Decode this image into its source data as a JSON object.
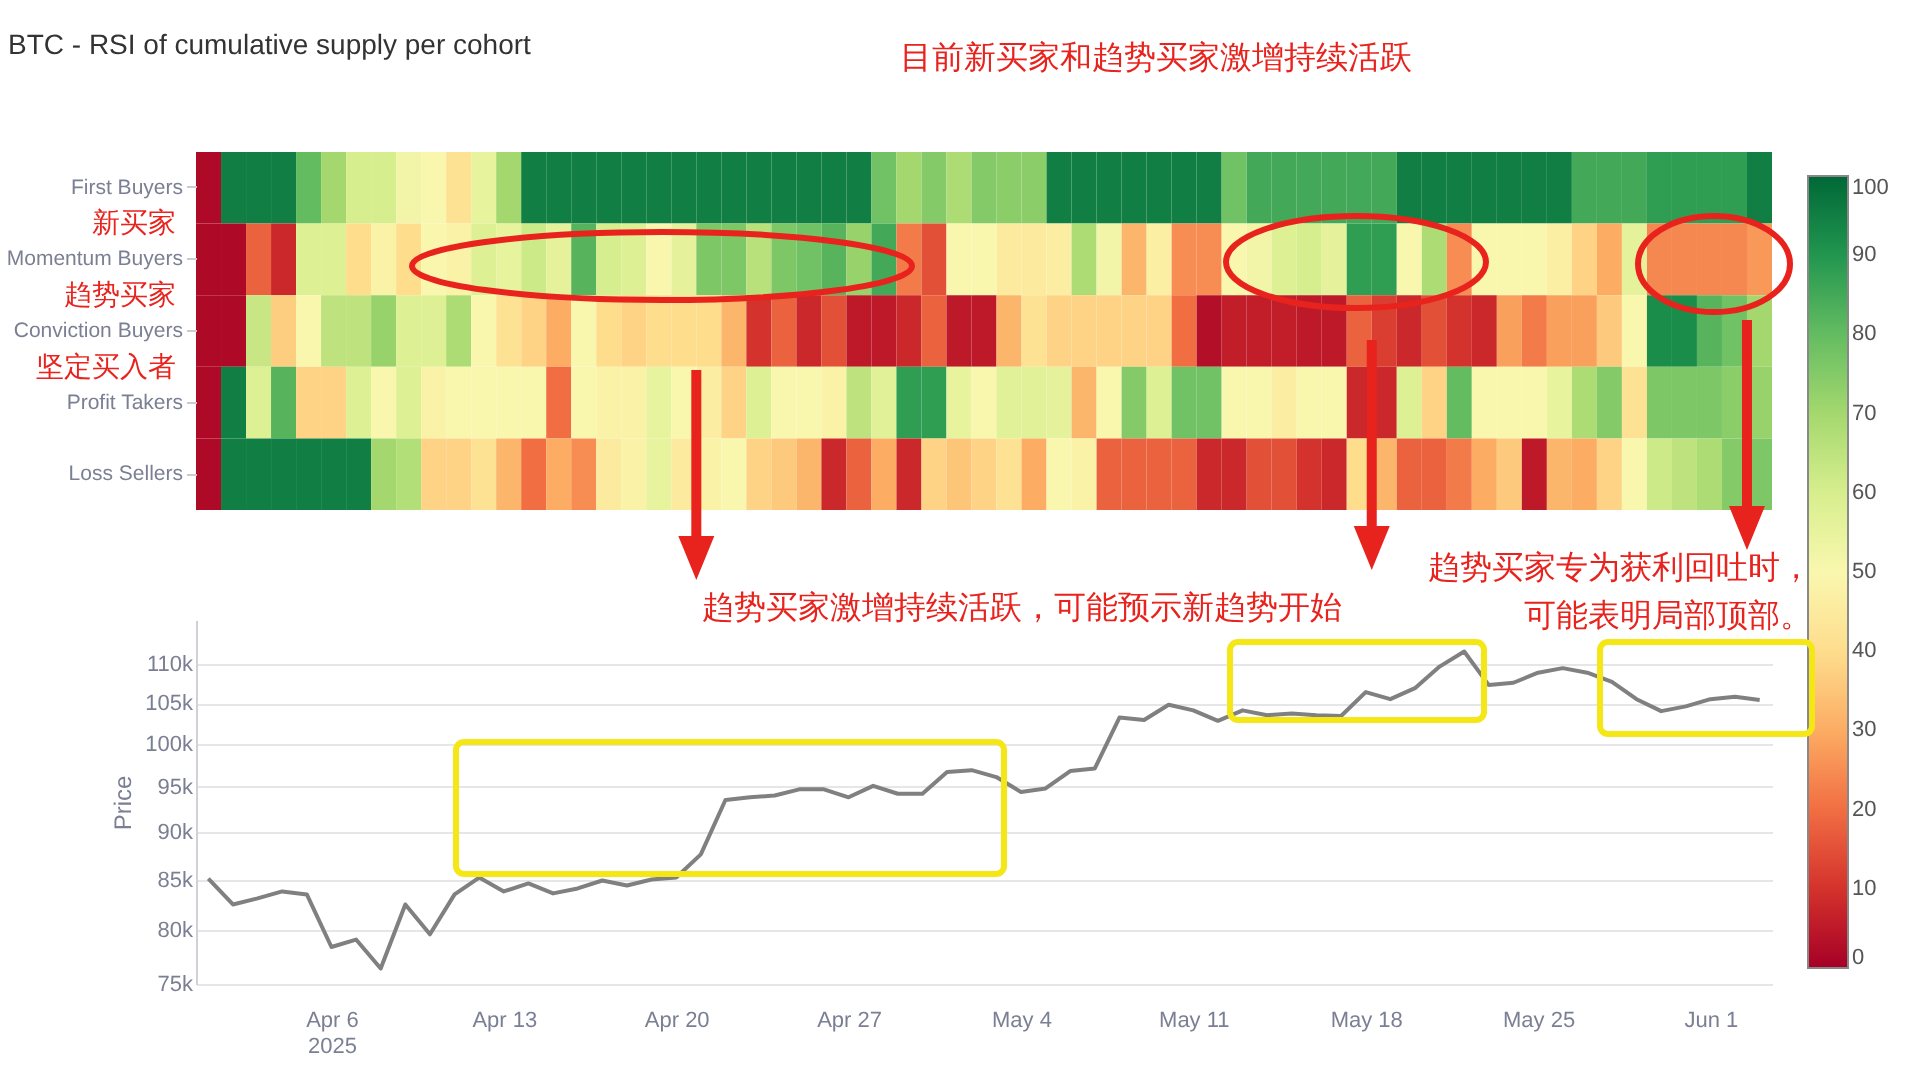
{
  "chart_data": [
    {
      "type": "heatmap",
      "title": "BTC - RSI of cumulative supply per cohort",
      "annotations": [
        "目前新买家和趋势买家激增持续活跃",
        "新买家",
        "趋势买家",
        "坚定买入者"
      ],
      "categories": [
        null,
        null,
        null,
        null,
        null,
        null,
        null,
        null,
        null,
        null,
        null,
        null,
        null,
        null,
        null,
        null,
        null,
        null,
        null,
        null,
        null,
        null,
        null,
        null,
        null,
        null,
        null,
        null,
        null,
        null,
        null,
        null,
        null,
        null,
        null,
        null,
        null,
        null,
        null,
        null,
        null,
        null,
        null,
        null,
        null,
        null,
        null,
        null,
        null,
        null,
        null,
        null,
        null,
        null,
        null,
        null,
        null,
        null,
        null,
        null,
        null,
        null,
        null
      ],
      "y_categories": [
        "First Buyers",
        "Momentum Buyers",
        "Conviction Buyers",
        "Profit Takers",
        "Loss Sellers"
      ],
      "cells": [
        [
          2,
          95,
          95,
          95,
          80,
          70,
          60,
          60,
          52,
          50,
          42,
          55,
          70,
          95,
          95,
          95,
          95,
          95,
          95,
          95,
          95,
          95,
          95,
          95,
          95,
          95,
          95,
          78,
          70,
          75,
          68,
          75,
          74,
          74,
          95,
          95,
          95,
          95,
          95,
          95,
          95,
          78,
          85,
          85,
          85,
          85,
          85,
          85,
          95,
          95,
          95,
          95,
          95,
          95,
          95,
          85,
          85,
          85,
          88,
          88,
          88,
          88,
          95
        ],
        [
          2,
          2,
          18,
          8,
          58,
          58,
          40,
          48,
          40,
          50,
          48,
          58,
          55,
          62,
          56,
          82,
          60,
          58,
          50,
          56,
          76,
          76,
          66,
          76,
          78,
          82,
          72,
          85,
          22,
          15,
          50,
          50,
          45,
          45,
          46,
          68,
          52,
          32,
          47,
          25,
          25,
          50,
          52,
          58,
          60,
          56,
          88,
          88,
          50,
          68,
          25,
          50,
          50,
          50,
          47,
          38,
          30,
          56,
          24,
          24,
          24,
          24,
          27
        ],
        [
          2,
          2,
          63,
          37,
          50,
          65,
          65,
          72,
          58,
          58,
          68,
          50,
          42,
          38,
          30,
          50,
          40,
          38,
          40,
          40,
          40,
          32,
          10,
          18,
          8,
          15,
          5,
          5,
          8,
          18,
          5,
          5,
          32,
          42,
          38,
          38,
          38,
          38,
          38,
          20,
          3,
          6,
          6,
          6,
          5,
          5,
          18,
          12,
          8,
          15,
          10,
          8,
          28,
          22,
          28,
          28,
          36,
          50,
          92,
          92,
          82,
          78,
          70
        ],
        [
          2,
          95,
          58,
          82,
          38,
          38,
          58,
          50,
          58,
          48,
          50,
          50,
          50,
          50,
          20,
          50,
          48,
          48,
          55,
          50,
          46,
          38,
          58,
          50,
          50,
          48,
          65,
          57,
          88,
          88,
          55,
          50,
          57,
          57,
          56,
          32,
          50,
          75,
          58,
          78,
          78,
          50,
          50,
          46,
          50,
          50,
          8,
          8,
          58,
          38,
          80,
          50,
          50,
          50,
          55,
          68,
          75,
          42,
          76,
          76,
          76,
          74,
          72
        ],
        [
          2,
          95,
          95,
          95,
          95,
          95,
          95,
          70,
          67,
          38,
          38,
          42,
          32,
          20,
          30,
          25,
          45,
          48,
          55,
          45,
          48,
          50,
          38,
          36,
          32,
          8,
          18,
          30,
          8,
          38,
          35,
          38,
          42,
          30,
          50,
          48,
          18,
          18,
          18,
          18,
          8,
          8,
          15,
          15,
          10,
          8,
          40,
          32,
          18,
          18,
          22,
          30,
          36,
          5,
          32,
          30,
          38,
          50,
          62,
          65,
          68,
          75,
          76
        ]
      ],
      "clim": [
        0,
        100
      ],
      "cticks": [
        0,
        10,
        20,
        30,
        40,
        50,
        60,
        70,
        80,
        90,
        100
      ]
    },
    {
      "type": "line",
      "ylabel": "Price",
      "annotations": [
        "趋势买家激增持续活跃，可能预示新趋势开始",
        "趋势买家专为获利回吐时，",
        "可能表明局部顶部。"
      ],
      "x": [
        "2025-04-01",
        "2025-04-02",
        "2025-04-03",
        "2025-04-04",
        "2025-04-05",
        "2025-04-06",
        "2025-04-07",
        "2025-04-08",
        "2025-04-09",
        "2025-04-10",
        "2025-04-11",
        "2025-04-12",
        "2025-04-13",
        "2025-04-14",
        "2025-04-15",
        "2025-04-16",
        "2025-04-17",
        "2025-04-18",
        "2025-04-19",
        "2025-04-20",
        "2025-04-21",
        "2025-04-22",
        "2025-04-23",
        "2025-04-24",
        "2025-04-25",
        "2025-04-26",
        "2025-04-27",
        "2025-04-28",
        "2025-04-29",
        "2025-04-30",
        "2025-05-01",
        "2025-05-02",
        "2025-05-03",
        "2025-05-04",
        "2025-05-05",
        "2025-05-06",
        "2025-05-07",
        "2025-05-08",
        "2025-05-09",
        "2025-05-10",
        "2025-05-11",
        "2025-05-12",
        "2025-05-13",
        "2025-05-14",
        "2025-05-15",
        "2025-05-16",
        "2025-05-17",
        "2025-05-18",
        "2025-05-19",
        "2025-05-20",
        "2025-05-21",
        "2025-05-22",
        "2025-05-23",
        "2025-05-24",
        "2025-05-25",
        "2025-05-26",
        "2025-05-27",
        "2025-05-28",
        "2025-05-29",
        "2025-05-30",
        "2025-05-31",
        "2025-06-01",
        "2025-06-02",
        "2025-06-03"
      ],
      "series": [
        {
          "color": "#808080",
          "values": [
            85100,
            82500,
            83100,
            83800,
            83500,
            78400,
            79100,
            76400,
            82500,
            79600,
            83500,
            85200,
            83800,
            84600,
            83600,
            84100,
            84900,
            84400,
            85000,
            85200,
            87600,
            93500,
            93800,
            94000,
            94700,
            94700,
            93800,
            95100,
            94200,
            94200,
            96700,
            96900,
            96100,
            94400,
            94800,
            96800,
            97100,
            103200,
            102900,
            104800,
            104100,
            102800,
            104100,
            103500,
            103700,
            103500,
            103400,
            106400,
            105500,
            106900,
            109700,
            111700,
            107300,
            107600,
            108900,
            109500,
            108900,
            107700,
            105500,
            104000,
            104600,
            105500,
            105800,
            105400
          ]
        }
      ],
      "xlim": [
        "2025-03-31T12:00",
        "2025-06-03T12:00"
      ],
      "xticks": [
        {
          "value": "2025-04-06",
          "label": "Apr 6\n2025"
        },
        {
          "value": "2025-04-13",
          "label": "Apr 13"
        },
        {
          "value": "2025-04-20",
          "label": "Apr 20"
        },
        {
          "value": "2025-04-27",
          "label": "Apr 27"
        },
        {
          "value": "2025-05-04",
          "label": "May 4"
        },
        {
          "value": "2025-05-11",
          "label": "May 11"
        },
        {
          "value": "2025-05-18",
          "label": "May 18"
        },
        {
          "value": "2025-05-25",
          "label": "May 25"
        },
        {
          "value": "2025-06-01",
          "label": "Jun 1"
        }
      ],
      "ylim": [
        75000,
        116000
      ],
      "yticks": [
        {
          "value": 75000,
          "label": "75k"
        },
        {
          "value": 80000,
          "label": "80k"
        },
        {
          "value": 85000,
          "label": "85k"
        },
        {
          "value": 90000,
          "label": "90k"
        },
        {
          "value": 95000,
          "label": "95k"
        },
        {
          "value": 100000,
          "label": "100k"
        },
        {
          "value": 105000,
          "label": "105k"
        },
        {
          "value": 110000,
          "label": "110k"
        }
      ],
      "log": "y",
      "grid": "y"
    }
  ]
}
